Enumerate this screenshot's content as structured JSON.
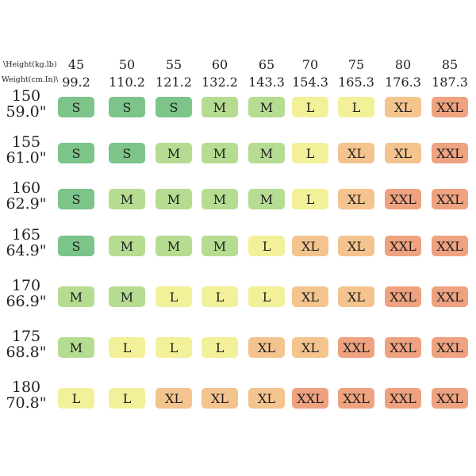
{
  "chart_data": {
    "type": "table",
    "header": {
      "corner_top": "\\Height(kg.lb)",
      "corner_bottom": "Weight(cm.In)\\"
    },
    "columns_kg": [
      "45",
      "50",
      "55",
      "60",
      "65",
      "70",
      "75",
      "80",
      "85"
    ],
    "columns_lb": [
      "99.2",
      "110.2",
      "121.2",
      "132.2",
      "143.3",
      "154.3",
      "165.3",
      "176.3",
      "187.3"
    ],
    "rows_cm": [
      "150",
      "155",
      "160",
      "165",
      "170",
      "175",
      "180"
    ],
    "rows_in": [
      "59.0\"",
      "61.0\"",
      "62.9\"",
      "64.9\"",
      "66.9\"",
      "68.8\"",
      "70.8\""
    ],
    "sizes": [
      [
        "S",
        "S",
        "S",
        "M",
        "M",
        "L",
        "L",
        "XL",
        "XXL"
      ],
      [
        "S",
        "S",
        "M",
        "M",
        "M",
        "L",
        "XL",
        "XL",
        "XXL"
      ],
      [
        "S",
        "M",
        "M",
        "M",
        "M",
        "L",
        "XL",
        "XXL",
        "XXL"
      ],
      [
        "S",
        "M",
        "M",
        "M",
        "L",
        "XL",
        "XL",
        "XXL",
        "XXL"
      ],
      [
        "M",
        "M",
        "L",
        "L",
        "L",
        "XL",
        "XL",
        "XXL",
        "XXL"
      ],
      [
        "M",
        "L",
        "L",
        "L",
        "XL",
        "XL",
        "XXL",
        "XXL",
        "XXL"
      ],
      [
        "L",
        "L",
        "XL",
        "XL",
        "XL",
        "XXL",
        "XXL",
        "XXL",
        "XXL"
      ]
    ],
    "size_colors": {
      "S": "#7cc48a",
      "M": "#b6dc92",
      "L": "#f3f09a",
      "XL": "#f4c48e",
      "XXL": "#eea27f"
    }
  }
}
